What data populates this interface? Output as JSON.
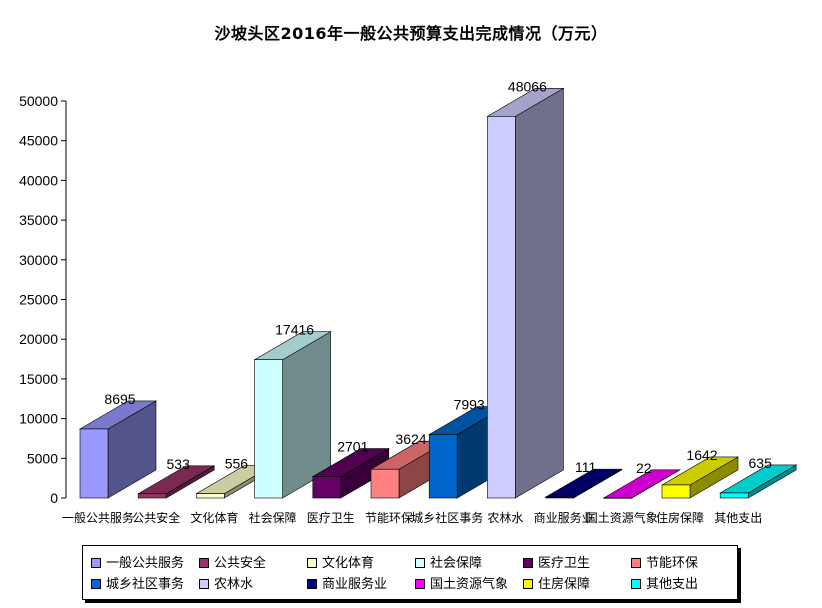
{
  "chart_data": {
    "type": "bar",
    "title": "沙坡头区2016年一般公共预算支出完成情况（万元）",
    "categories": [
      "一般公共服务",
      "公共安全",
      "文化体育",
      "社会保障",
      "医疗卫生",
      "节能环保",
      "城乡社区事务",
      "农林水",
      "商业服务业",
      "国土资源气象",
      "住房保障",
      "其他支出"
    ],
    "values": [
      8695,
      533,
      556,
      17416,
      2701,
      3624,
      7993,
      48066,
      111,
      22,
      1642,
      635
    ],
    "ylim": [
      0,
      50000
    ],
    "yticks": [
      0,
      5000,
      10000,
      15000,
      20000,
      25000,
      30000,
      35000,
      40000,
      45000,
      50000
    ],
    "colors": [
      "#9999ff",
      "#993366",
      "#ffffcc",
      "#ccffff",
      "#660066",
      "#ff8080",
      "#0066cc",
      "#ccccff",
      "#000080",
      "#ff00ff",
      "#ffff00",
      "#00ffff"
    ],
    "legend_position": "bottom",
    "grid": false,
    "three_d": true
  }
}
